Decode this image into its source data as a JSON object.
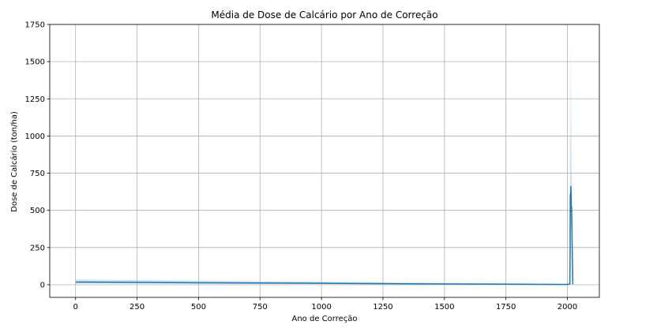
{
  "chart_data": {
    "type": "line",
    "title": "Média de Dose de Calcário por Ano de Correção",
    "xlabel": "Ano de Correção",
    "ylabel": "Dose de Calcário (ton/ha)",
    "xlim": [
      -105,
      2130
    ],
    "ylim": [
      -85,
      1750
    ],
    "xticks": [
      0,
      250,
      500,
      750,
      1000,
      1250,
      1500,
      1750,
      2000
    ],
    "yticks": [
      0,
      250,
      500,
      750,
      1000,
      1250,
      1500,
      1750
    ],
    "grid": true,
    "colors": {
      "line": "#1f77b4",
      "band": "#a6c8e4"
    },
    "series": [
      {
        "x": [
          0,
          500,
          1000,
          1500,
          2000,
          2010,
          2011,
          2012,
          2013,
          2014,
          2015,
          2016,
          2017,
          2018,
          2019,
          2020,
          2021,
          2022
        ],
        "y": [
          18,
          13,
          10,
          5,
          2,
          5,
          180,
          610,
          560,
          660,
          610,
          490,
          520,
          430,
          300,
          200,
          120,
          3
        ],
        "ci_low": [
          8,
          6,
          4,
          2,
          0,
          0,
          80,
          480,
          400,
          520,
          450,
          350,
          380,
          320,
          200,
          120,
          60,
          0
        ],
        "ci_high": [
          35,
          28,
          20,
          12,
          6,
          12,
          1660,
          900,
          1050,
          1670,
          1300,
          980,
          760,
          700,
          650,
          500,
          300,
          8
        ]
      }
    ]
  }
}
